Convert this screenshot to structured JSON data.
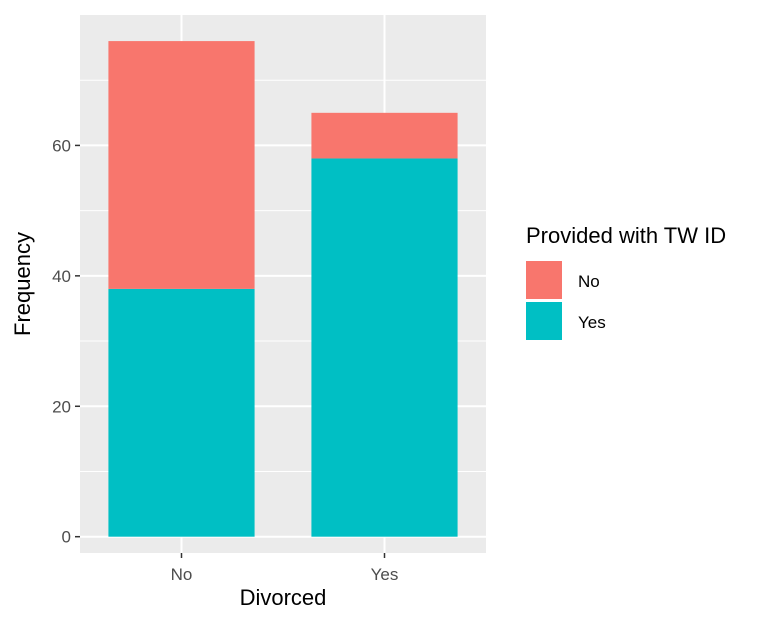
{
  "chart_data": {
    "type": "bar",
    "stacked": true,
    "categories": [
      "No",
      "Yes"
    ],
    "series": [
      {
        "name": "Yes",
        "values": [
          38,
          58
        ],
        "color": "#00BFC4"
      },
      {
        "name": "No",
        "values": [
          38,
          7
        ],
        "color": "#F8766D"
      }
    ],
    "xlabel": "Divorced",
    "ylabel": "Frequency",
    "ylim": [
      -2.5,
      80
    ],
    "yticks": [
      0,
      20,
      40,
      60
    ],
    "grid": true,
    "legend": {
      "title": "Provided with TW ID",
      "position": "right",
      "items": [
        {
          "label": "No",
          "color": "#F8766D"
        },
        {
          "label": "Yes",
          "color": "#00BFC4"
        }
      ]
    }
  }
}
